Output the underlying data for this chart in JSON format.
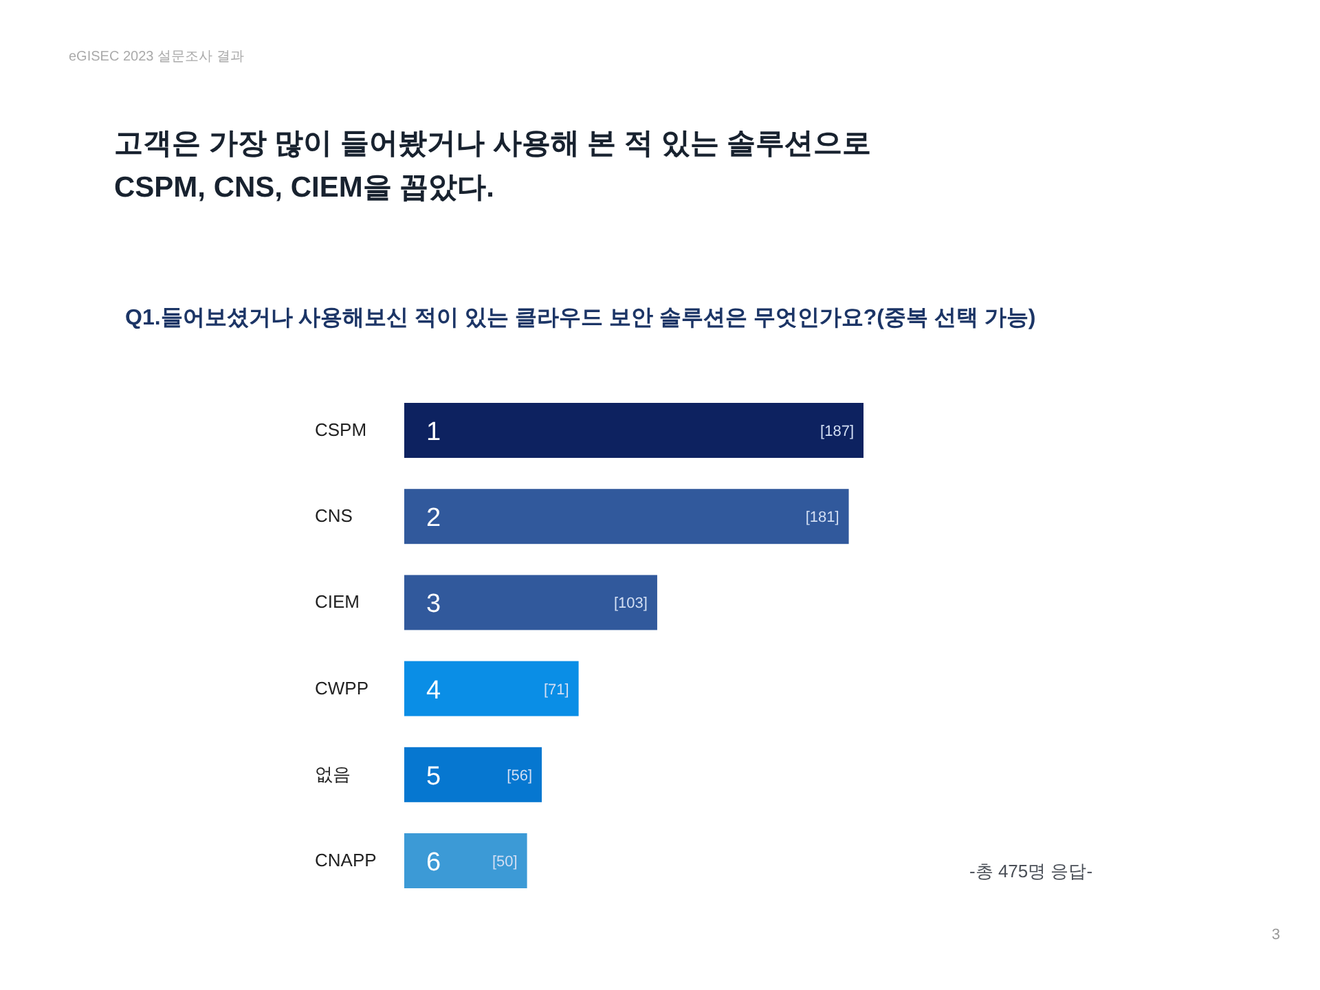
{
  "chart_data": {
    "type": "bar",
    "orientation": "horizontal",
    "title": "고객은 가장 많이 들어봤거나 사용해 본 적 있는 솔루션으로\nCSPM, CNS, CIEM을 꼽았다.",
    "subtitle": "Q1.들어보셨거나 사용해보신 적이 있는 클라우드 보안 솔루션은 무엇인가요?(중복 선택 가능)",
    "categories": [
      "CSPM",
      "CNS",
      "CIEM",
      "CWPP",
      "없음",
      "CNAPP"
    ],
    "values": [
      187,
      181,
      103,
      71,
      56,
      50
    ],
    "value_labels": [
      "[187]",
      "[181]",
      "[103]",
      "[71]",
      "[56]",
      "[50]"
    ],
    "colors": [
      "#0d2260",
      "#31599c",
      "#31599c",
      "#0a8ee6",
      "#0677d0",
      "#3c9ad6"
    ],
    "annotations": [
      "eGISEC 2023 설문조사 결과",
      "1",
      "2",
      "3",
      "4",
      "5",
      "6",
      "-총 475명 응답-",
      "3"
    ]
  }
}
